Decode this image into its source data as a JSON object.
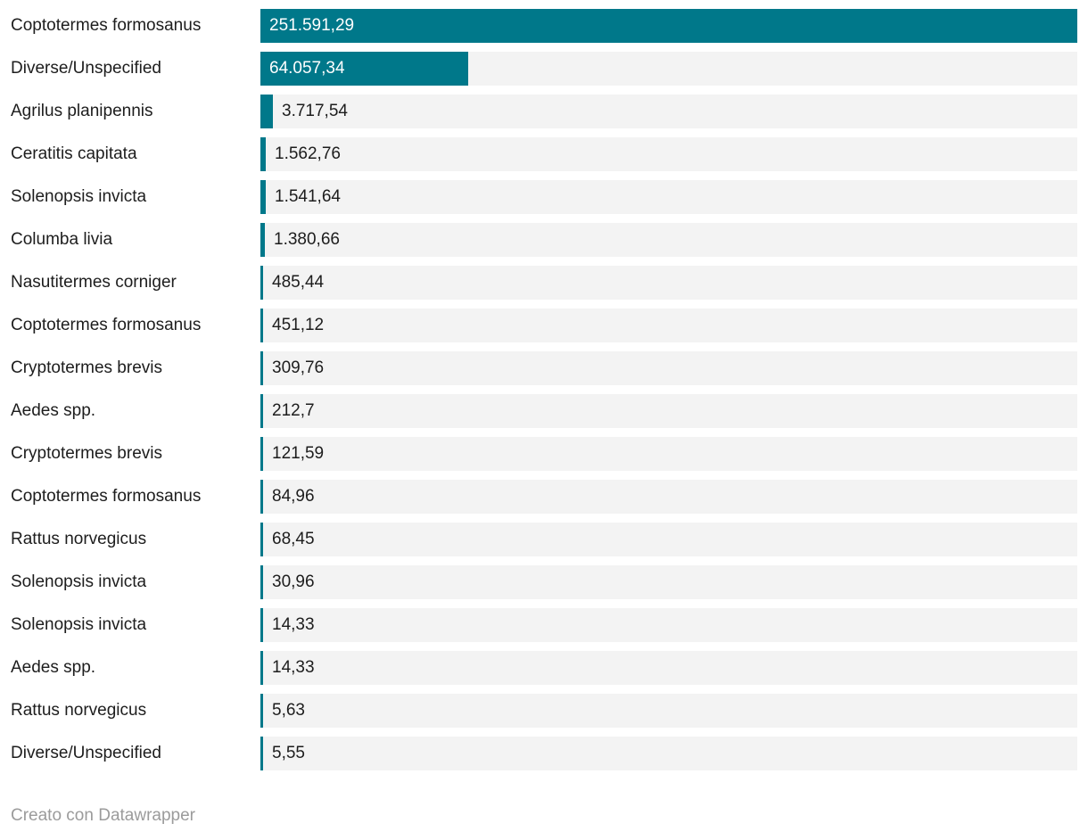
{
  "colors": {
    "bar_accent": "#00788a",
    "track_background": "#f3f3f3",
    "label_text": "#1d1d1d",
    "value_text_inside": "#ffffff",
    "value_text_outside": "#1d1d1d",
    "footer_text": "#9b9b9b",
    "page_background": "#ffffff"
  },
  "footer": {
    "credit": "Creato con Datawrapper"
  },
  "chart_data": {
    "type": "bar",
    "orientation": "horizontal",
    "title": "",
    "xlabel": "",
    "ylabel": "",
    "xlim": [
      0,
      251591.29
    ],
    "grid": false,
    "legend": false,
    "value_format": "italian-decimal-comma",
    "categories": [
      "Coptotermes formosanus",
      "Diverse/Unspecified",
      "Agrilus planipennis",
      "Ceratitis capitata",
      "Solenopsis invicta",
      "Columba livia",
      "Nasutitermes corniger",
      "Coptotermes formosanus",
      "Cryptotermes brevis",
      "Aedes spp.",
      "Cryptotermes brevis",
      "Coptotermes formosanus",
      "Rattus norvegicus",
      "Solenopsis invicta",
      "Solenopsis invicta",
      "Aedes spp.",
      "Rattus norvegicus",
      "Diverse/Unspecified"
    ],
    "values": [
      251591.29,
      64057.34,
      3717.54,
      1562.76,
      1541.64,
      1380.66,
      485.44,
      451.12,
      309.76,
      212.7,
      121.59,
      84.96,
      68.45,
      30.96,
      14.33,
      14.33,
      5.63,
      5.55
    ],
    "value_labels": [
      "251.591,29",
      "64.057,34",
      "3.717,54",
      "1.562,76",
      "1.541,64",
      "1.380,66",
      "485,44",
      "451,12",
      "309,76",
      "212,7",
      "121,59",
      "84,96",
      "68,45",
      "30,96",
      "14,33",
      "14,33",
      "5,63",
      "5,55"
    ]
  }
}
